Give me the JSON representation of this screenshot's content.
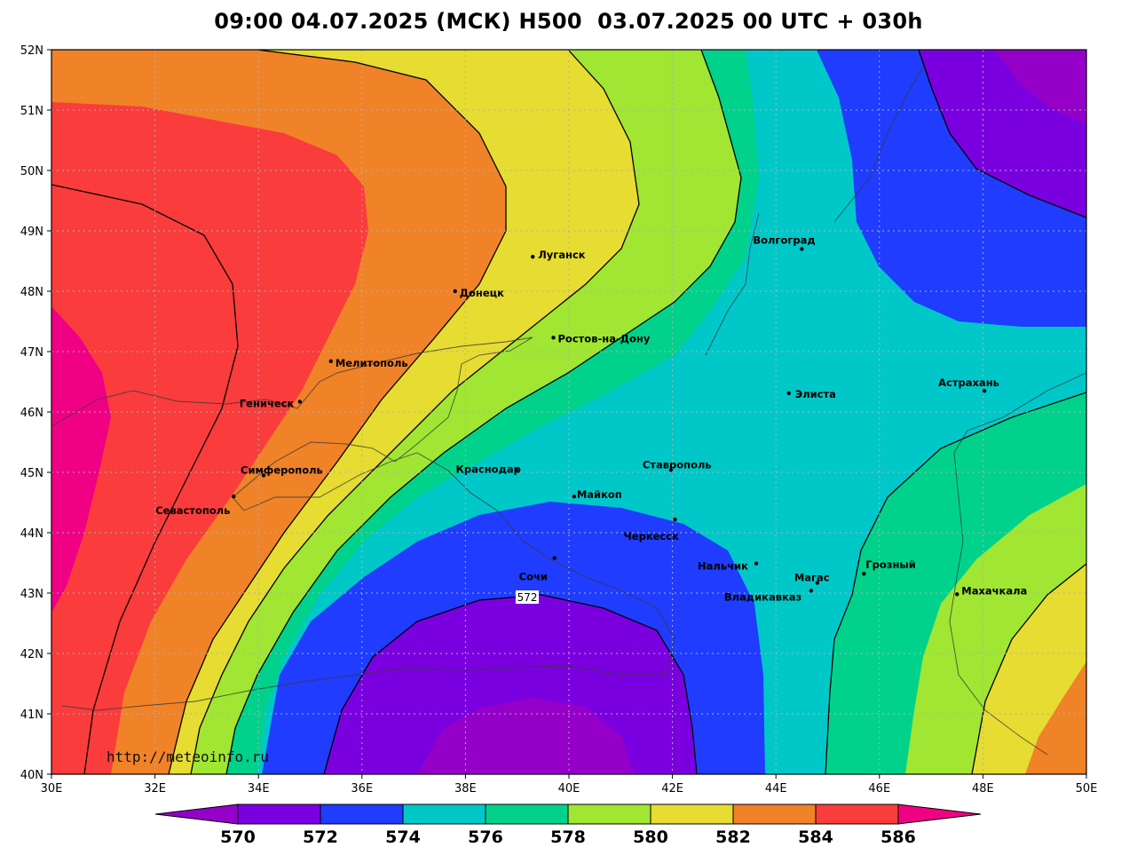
{
  "title": "09:00 04.07.2025 (МСК) H500  03.07.2025 00 UTC + 030h",
  "watermark": "http://meteoinfo.ru",
  "map": {
    "lon_range": [
      30,
      50
    ],
    "lat_range": [
      40,
      52
    ],
    "x_ticks": [
      "30E",
      "32E",
      "34E",
      "36E",
      "38E",
      "40E",
      "42E",
      "44E",
      "46E",
      "48E",
      "50E"
    ],
    "y_ticks": [
      "40N",
      "41N",
      "42N",
      "43N",
      "44N",
      "45N",
      "46N",
      "47N",
      "48N",
      "49N",
      "50N",
      "51N",
      "52N"
    ],
    "grid": "dotted"
  },
  "contour_label": "572",
  "colorbar": {
    "labels": [
      "570",
      "572",
      "574",
      "576",
      "578",
      "580",
      "582",
      "584",
      "586"
    ],
    "colors": [
      "#9400c8",
      "#7b00e0",
      "#1f3cff",
      "#00c8c8",
      "#00d28c",
      "#a0e632",
      "#e6dc32",
      "#f08228",
      "#fa3c3c",
      "#f00082"
    ]
  },
  "cities": [
    {
      "name": "Волгоград",
      "lon": 44.5,
      "lat": 48.7
    },
    {
      "name": "Луганск",
      "lon": 39.3,
      "lat": 48.57
    },
    {
      "name": "Донецк",
      "lon": 37.8,
      "lat": 48.0
    },
    {
      "name": "Ростов-на-Дону",
      "lon": 39.7,
      "lat": 47.23
    },
    {
      "name": "Мелитополь",
      "lon": 35.4,
      "lat": 46.84
    },
    {
      "name": "Геническ",
      "lon": 34.8,
      "lat": 46.17
    },
    {
      "name": "Элиста",
      "lon": 44.25,
      "lat": 46.31
    },
    {
      "name": "Астрахань",
      "lon": 48.03,
      "lat": 46.35
    },
    {
      "name": "Симферополь",
      "lon": 34.1,
      "lat": 44.95
    },
    {
      "name": "Краснодар",
      "lon": 38.98,
      "lat": 45.04
    },
    {
      "name": "Ставрополь",
      "lon": 41.97,
      "lat": 45.04
    },
    {
      "name": "Майкоп",
      "lon": 40.1,
      "lat": 44.6
    },
    {
      "name": "Севастополь",
      "lon": 33.52,
      "lat": 44.6
    },
    {
      "name": "Черкесск",
      "lon": 42.05,
      "lat": 44.22
    },
    {
      "name": "Нальчик",
      "lon": 43.62,
      "lat": 43.49
    },
    {
      "name": "Сочи",
      "lon": 39.72,
      "lat": 43.58
    },
    {
      "name": "Грозный",
      "lon": 45.7,
      "lat": 43.32
    },
    {
      "name": "Магас",
      "lon": 44.8,
      "lat": 43.17
    },
    {
      "name": "Владикавказ",
      "lon": 44.68,
      "lat": 43.04
    },
    {
      "name": "Махачкала",
      "lon": 47.5,
      "lat": 42.98
    }
  ]
}
